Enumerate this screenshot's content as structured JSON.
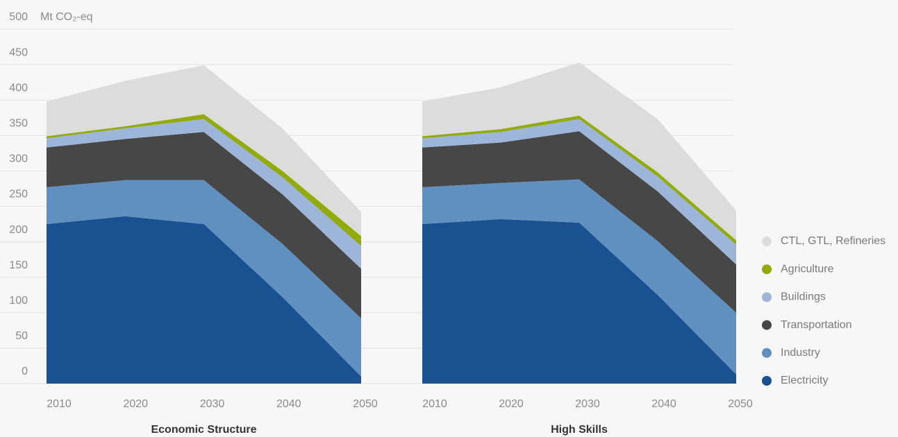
{
  "chart_data": [
    {
      "type": "area",
      "title": "Economic Structure",
      "y_label": "Mt CO₂-eq",
      "categories": [
        "2010",
        "2020",
        "2030",
        "2040",
        "2050"
      ],
      "ylim": [
        0,
        500
      ],
      "yticks": [
        0,
        50,
        100,
        150,
        200,
        250,
        300,
        350,
        400,
        450,
        500
      ],
      "grid": true,
      "series": [
        {
          "name": "Electricity",
          "color": "#1a5190",
          "values": [
            225,
            236,
            225,
            122,
            10
          ]
        },
        {
          "name": "Industry",
          "color": "#6090c0",
          "values": [
            52,
            51,
            62,
            75,
            82
          ]
        },
        {
          "name": "Transportation",
          "color": "#474747",
          "values": [
            56,
            58,
            68,
            70,
            70
          ]
        },
        {
          "name": "Buildings",
          "color": "#9db5d8",
          "values": [
            13,
            15,
            18,
            24,
            32
          ]
        },
        {
          "name": "Agriculture",
          "color": "#93aa0b",
          "values": [
            3,
            3,
            7,
            9,
            14
          ]
        },
        {
          "name": "CTL, GTL, Refineries",
          "color": "#dcdcdc",
          "values": [
            49,
            64,
            69,
            60,
            34
          ]
        }
      ]
    },
    {
      "type": "area",
      "title": "High Skills",
      "categories": [
        "2010",
        "2020",
        "2030",
        "2040",
        "2050"
      ],
      "ylim": [
        0,
        500
      ],
      "series": [
        {
          "color": "#1a5190",
          "values": [
            225,
            232,
            227,
            125,
            13
          ]
        },
        {
          "color": "#6090c0",
          "values": [
            52,
            51,
            61,
            76,
            87
          ]
        },
        {
          "color": "#474747",
          "values": [
            56,
            57,
            68,
            70,
            68
          ]
        },
        {
          "color": "#9db5d8",
          "values": [
            13,
            15,
            17,
            21,
            28
          ]
        },
        {
          "color": "#93aa0b",
          "values": [
            3,
            4,
            5,
            6,
            6
          ]
        },
        {
          "color": "#dcdcdc",
          "values": [
            49,
            59,
            75,
            75,
            42
          ]
        }
      ]
    }
  ]
}
